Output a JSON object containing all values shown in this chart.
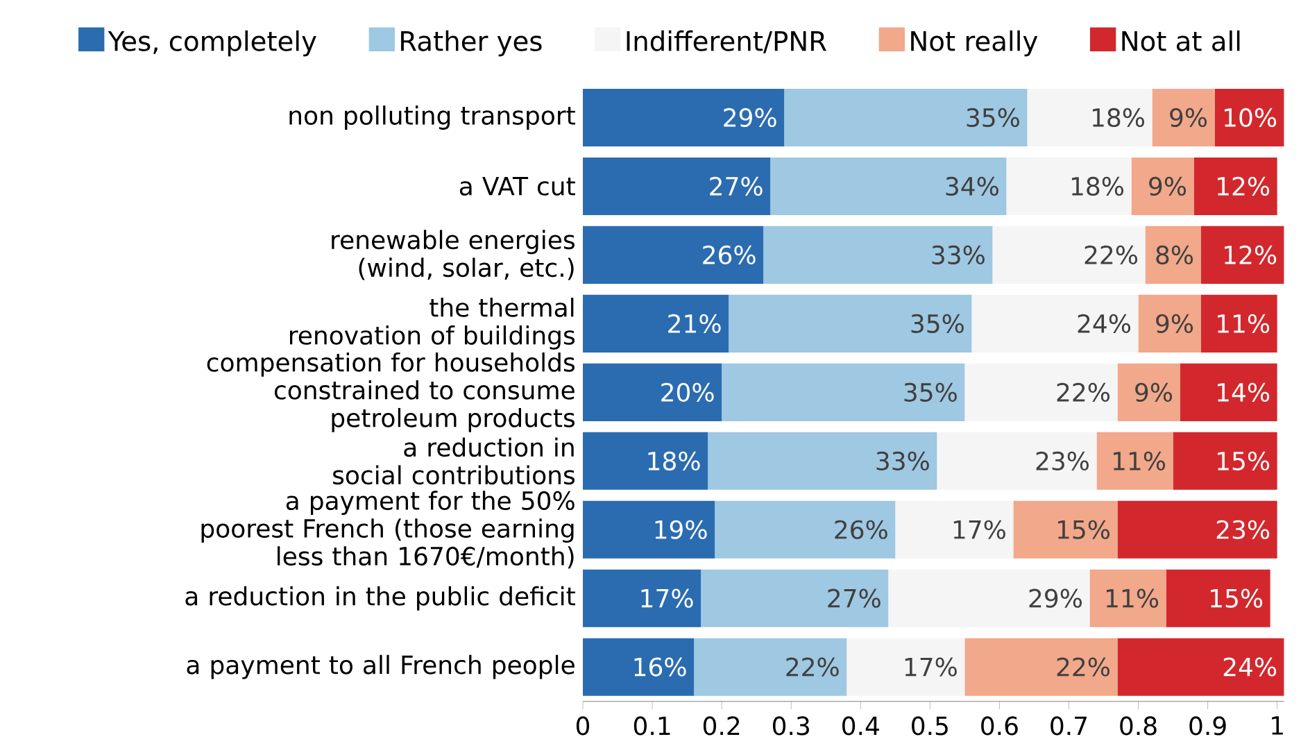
{
  "chart_data": {
    "type": "bar",
    "orientation": "horizontal",
    "stacked": true,
    "legend": "top",
    "xlim": [
      0,
      1.01
    ],
    "xticks": [
      0,
      0.1,
      0.2,
      0.3,
      0.4,
      0.5,
      0.6,
      0.7,
      0.8,
      0.9,
      1
    ],
    "categories": [
      "non polluting transport",
      "a VAT cut",
      "renewable energies (wind, solar, etc.)",
      "the thermal renovation of buildings",
      "compensation for households constrained to consume petroleum products",
      "a reduction in social contributions",
      "a payment for the 50% poorest French (those earning less than 1670€/month)",
      "a reduction in the public deficit",
      "a payment to all French people"
    ],
    "series": [
      {
        "name": "Yes, completely",
        "color": "#2b6cb0",
        "values": [
          0.29,
          0.27,
          0.26,
          0.21,
          0.2,
          0.18,
          0.19,
          0.17,
          0.16
        ],
        "value_labels": [
          "29%",
          "27%",
          "26%",
          "21%",
          "20%",
          "18%",
          "19%",
          "17%",
          "16%"
        ]
      },
      {
        "name": "Rather yes",
        "color": "#9fc8e2",
        "values": [
          0.35,
          0.34,
          0.33,
          0.35,
          0.35,
          0.33,
          0.26,
          0.27,
          0.22
        ],
        "value_labels": [
          "35%",
          "34%",
          "33%",
          "35%",
          "35%",
          "33%",
          "26%",
          "27%",
          "22%"
        ]
      },
      {
        "name": "Indifferent/PNR",
        "color": "#f5f5f5",
        "values": [
          0.18,
          0.18,
          0.22,
          0.24,
          0.22,
          0.23,
          0.17,
          0.29,
          0.17
        ],
        "value_labels": [
          "18%",
          "18%",
          "22%",
          "24%",
          "22%",
          "23%",
          "17%",
          "29%",
          "17%"
        ]
      },
      {
        "name": "Not really",
        "color": "#f2a88a",
        "values": [
          0.09,
          0.09,
          0.08,
          0.09,
          0.09,
          0.11,
          0.15,
          0.11,
          0.22
        ],
        "value_labels": [
          "9%",
          "9%",
          "8%",
          "9%",
          "9%",
          "11%",
          "15%",
          "11%",
          "22%"
        ]
      },
      {
        "name": "Not at all",
        "color": "#d2282d",
        "values": [
          0.1,
          0.12,
          0.12,
          0.11,
          0.14,
          0.15,
          0.23,
          0.15,
          0.24
        ],
        "value_labels": [
          "10%",
          "12%",
          "12%",
          "11%",
          "14%",
          "15%",
          "23%",
          "15%",
          "24%"
        ]
      }
    ]
  }
}
